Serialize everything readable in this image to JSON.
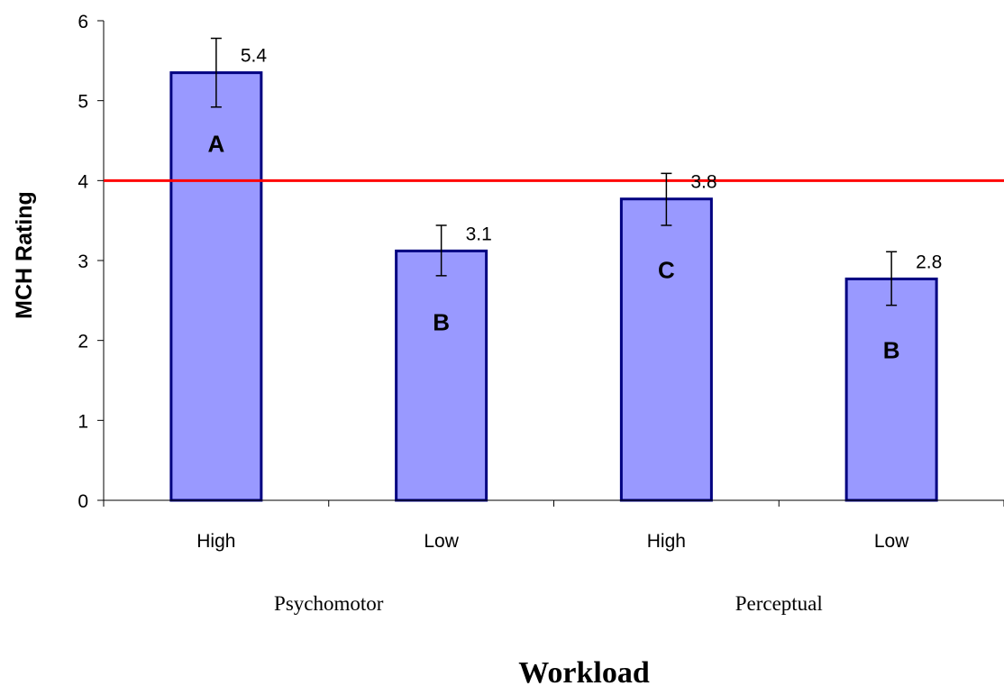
{
  "chart_data": {
    "type": "bar",
    "categories": [
      "High",
      "Low",
      "High",
      "Low"
    ],
    "groups": [
      {
        "label": "Psychomotor",
        "categories": [
          "High",
          "Low"
        ]
      },
      {
        "label": "Perceptual",
        "categories": [
          "High",
          "Low"
        ]
      }
    ],
    "values": [
      5.35,
      3.12,
      3.77,
      2.77
    ],
    "data_labels": [
      "5.4",
      "3.1",
      "3.8",
      "2.8"
    ],
    "error_bars": [
      {
        "low": 4.92,
        "high": 5.78
      },
      {
        "low": 2.81,
        "high": 3.44
      },
      {
        "low": 3.44,
        "high": 4.09
      },
      {
        "low": 2.44,
        "high": 3.11
      }
    ],
    "letters": [
      "A",
      "B",
      "C",
      "B"
    ],
    "reference_line": {
      "value": 4,
      "color": "#ff0000"
    },
    "xlabel": "Workload",
    "ylabel": "MCH Rating",
    "ylim": [
      0,
      6
    ],
    "yticks": [
      "0",
      "1",
      "2",
      "3",
      "4",
      "5",
      "6"
    ],
    "bar_fill": "#9999ff",
    "bar_stroke": "#000080",
    "grid": false,
    "legend": "none"
  }
}
